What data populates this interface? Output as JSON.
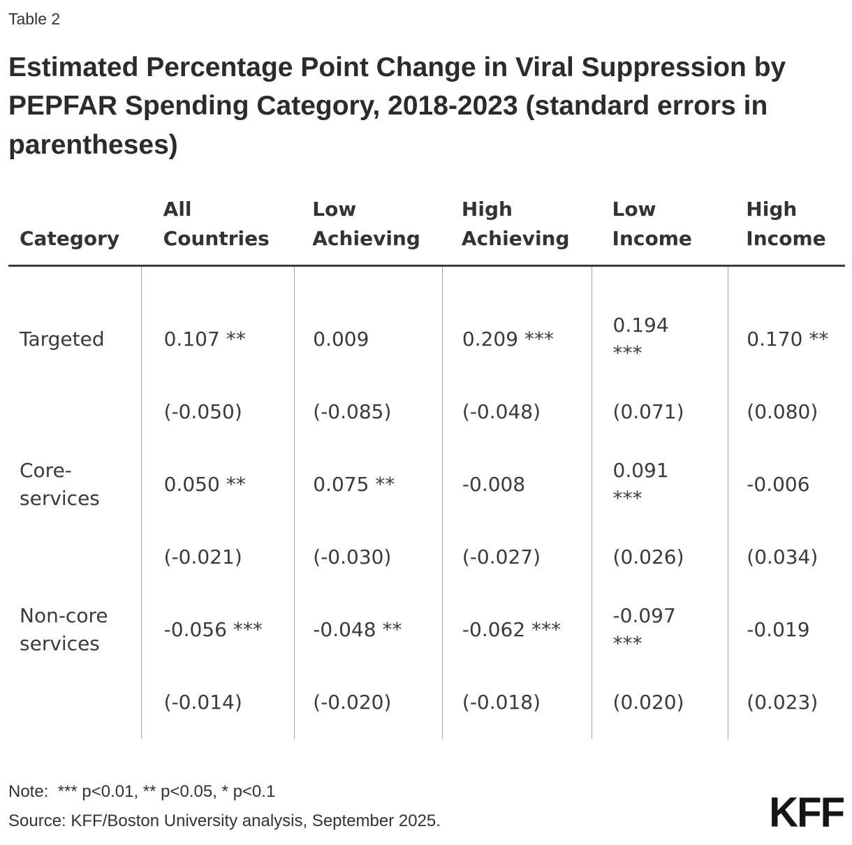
{
  "chart_data": {
    "type": "table",
    "label": "Table 2",
    "title": "Estimated Percentage Point Change in Viral Suppression by PEPFAR Spending Category, 2018-2023 (standard errors in parentheses)",
    "columns": [
      "Category",
      "All Countries",
      "Low Achieving",
      "High Achieving",
      "Low Income",
      "High Income"
    ],
    "rows": [
      {
        "category": "Targeted",
        "values": [
          "0.107 **",
          "0.009",
          "0.209 ***",
          "0.194 ***",
          "0.170 **"
        ],
        "se": [
          "(-0.050)",
          "(-0.085)",
          "(-0.048)",
          "(0.071)",
          "(0.080)"
        ]
      },
      {
        "category": "Core-services",
        "values": [
          "0.050 **",
          "0.075 **",
          "-0.008",
          "0.091 ***",
          "-0.006"
        ],
        "se": [
          "(-0.021)",
          "(-0.030)",
          "(-0.027)",
          "(0.026)",
          "(0.034)"
        ]
      },
      {
        "category": "Non-core services",
        "values": [
          "-0.056 ***",
          "-0.048 **",
          "-0.062 ***",
          "-0.097 ***",
          "-0.019"
        ],
        "se": [
          "(-0.014)",
          "(-0.020)",
          "(-0.018)",
          "(0.020)",
          "(0.023)"
        ]
      }
    ],
    "note": "Note:  *** p<0.01, ** p<0.05, * p<0.1",
    "source": "Source: KFF/Boston University analysis, September 2025.",
    "logo_text": "KFF",
    "colors": {
      "text": "#3a3a3a",
      "title": "#2b2b2b",
      "header_rule": "#3c3c3c",
      "divider": "#a3a3a3",
      "logo": "#161616"
    }
  }
}
